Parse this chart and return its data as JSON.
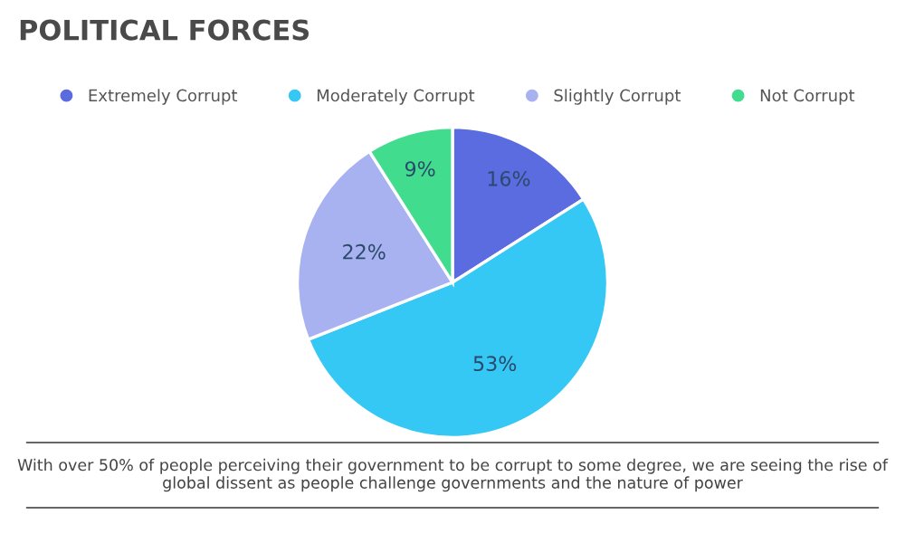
{
  "chart_data": {
    "type": "pie",
    "title": "POLITICAL FORCES",
    "categories": [
      "Extremely Corrupt",
      "Moderately Corrupt",
      "Slightly Corrupt",
      "Not Corrupt"
    ],
    "values": [
      16,
      53,
      22,
      9
    ],
    "colors": [
      "#5b6be0",
      "#35c8f5",
      "#a9b2f0",
      "#42dc8e"
    ],
    "value_labels": [
      "16%",
      "53%",
      "22%",
      "9%"
    ],
    "legend": "top",
    "annotations": [
      "With over 50% of people perceiving their government to be corrupt to some degree, we are seeing the rise of global dissent as people challenge governments and the nature of power"
    ]
  }
}
